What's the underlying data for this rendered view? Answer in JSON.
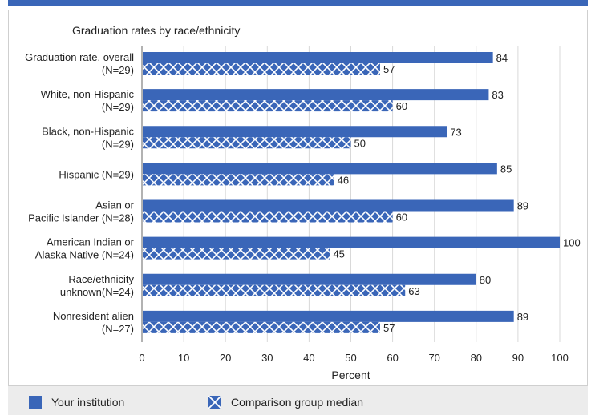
{
  "chart_data": {
    "type": "bar",
    "orientation": "horizontal",
    "title": "Graduation rates by race/ethnicity",
    "xlabel": "Percent",
    "xlim": [
      0,
      100
    ],
    "xticks": [
      0,
      10,
      20,
      30,
      40,
      50,
      60,
      70,
      80,
      90,
      100
    ],
    "categories": [
      [
        "Graduation rate, overall",
        "(N=29)"
      ],
      [
        "White, non-Hispanic",
        "(N=29)"
      ],
      [
        "Black, non-Hispanic",
        "(N=29)"
      ],
      [
        "Hispanic (N=29)"
      ],
      [
        "Asian or",
        "Pacific Islander (N=28)"
      ],
      [
        "American Indian or",
        "Alaska Native (N=24)"
      ],
      [
        "Race/ethnicity",
        "unknown(N=24)"
      ],
      [
        "Nonresident alien",
        "(N=27)"
      ]
    ],
    "series": [
      {
        "name": "Your institution",
        "values": [
          84,
          83,
          73,
          85,
          89,
          100,
          80,
          89
        ],
        "color": "#3a66b8",
        "pattern": "solid"
      },
      {
        "name": "Comparison group median",
        "values": [
          57,
          60,
          50,
          46,
          60,
          45,
          63,
          57
        ],
        "color": "#3a66b8",
        "pattern": "crosshatch"
      }
    ],
    "grid": true,
    "legend_position": "bottom"
  }
}
